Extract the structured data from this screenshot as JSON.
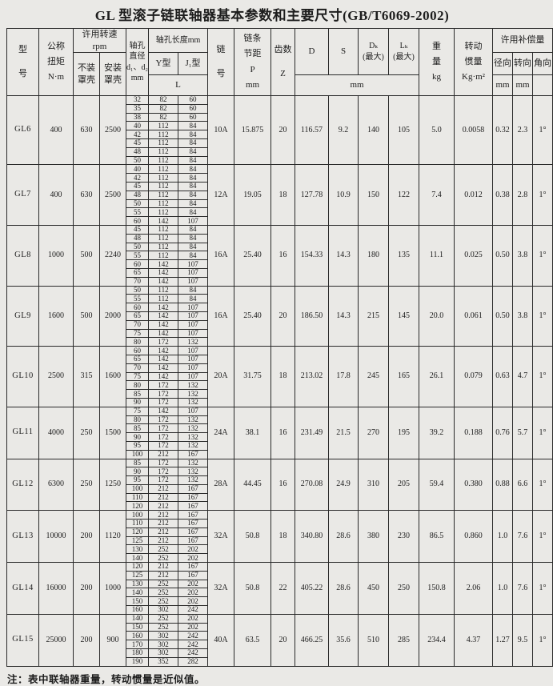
{
  "title": "GL 型滚子链联轴器基本参数和主要尺寸(GB/T6069-2002)",
  "note": "注：表中联轴器重量，转动惯量是近似值。",
  "header": {
    "model": "型\n号",
    "torque": "公称\n扭矩\nN·m",
    "speed": "许用转速\nrpm",
    "speed_open": "不装\n罩壳",
    "speed_cover": "安装\n罩壳",
    "bore_diameter": "轴孔\n直径\nd₁、d₂\nmm",
    "bore_length": "轴孔长度mm",
    "y_type": "Y型",
    "j_type": "J₁型",
    "length_l": "L",
    "chain": "链\n号",
    "pitch": "链条\n节距\nP\nmm",
    "teeth": "齿数\nZ",
    "d": "D",
    "s": "S",
    "dk": "Dₖ\n(最大)",
    "lk": "Lₖ\n(最大)",
    "dim_unit": "mm",
    "weight": "重\n量\nkg",
    "inertia": "转动\n惯量\nKg·m²",
    "compensation": "许用补偿量",
    "radial": "径向",
    "axial": "转向",
    "angular": "角向",
    "radial_unit": "mm",
    "axial_unit": "mm",
    "angular_unit": ""
  },
  "models": [
    {
      "name": "GL6",
      "torque": "400",
      "speed_open": "630",
      "speed_cover": "2500",
      "bores": [
        [
          "32",
          "82",
          "60"
        ],
        [
          "35",
          "82",
          "60"
        ],
        [
          "38",
          "82",
          "60"
        ],
        [
          "40",
          "112",
          "84"
        ],
        [
          "42",
          "112",
          "84"
        ],
        [
          "45",
          "112",
          "84"
        ],
        [
          "48",
          "112",
          "84"
        ],
        [
          "50",
          "112",
          "84"
        ]
      ],
      "chain_no": "10A",
      "pitch": "15.875",
      "teeth": "20",
      "D": "116.57",
      "S": "9.2",
      "Dk": "140",
      "Lk": "105",
      "weight": "5.0",
      "inertia": "0.0058",
      "radial": "0.32",
      "axial": "2.3",
      "angular": "1°"
    },
    {
      "name": "GL7",
      "torque": "400",
      "speed_open": "630",
      "speed_cover": "2500",
      "bores": [
        [
          "40",
          "112",
          "84"
        ],
        [
          "42",
          "112",
          "84"
        ],
        [
          "45",
          "112",
          "84"
        ],
        [
          "48",
          "112",
          "84"
        ],
        [
          "50",
          "112",
          "84"
        ],
        [
          "55",
          "112",
          "84"
        ],
        [
          "60",
          "142",
          "107"
        ]
      ],
      "chain_no": "12A",
      "pitch": "19.05",
      "teeth": "18",
      "D": "127.78",
      "S": "10.9",
      "Dk": "150",
      "Lk": "122",
      "weight": "7.4",
      "inertia": "0.012",
      "radial": "0.38",
      "axial": "2.8",
      "angular": "1°"
    },
    {
      "name": "GL8",
      "torque": "1000",
      "speed_open": "500",
      "speed_cover": "2240",
      "bores": [
        [
          "45",
          "112",
          "84"
        ],
        [
          "48",
          "112",
          "84"
        ],
        [
          "50",
          "112",
          "84"
        ],
        [
          "55",
          "112",
          "84"
        ],
        [
          "60",
          "142",
          "107"
        ],
        [
          "65",
          "142",
          "107"
        ],
        [
          "70",
          "142",
          "107"
        ]
      ],
      "chain_no": "16A",
      "pitch": "25.40",
      "teeth": "16",
      "D": "154.33",
      "S": "14.3",
      "Dk": "180",
      "Lk": "135",
      "weight": "11.1",
      "inertia": "0.025",
      "radial": "0.50",
      "axial": "3.8",
      "angular": "1°"
    },
    {
      "name": "GL9",
      "torque": "1600",
      "speed_open": "500",
      "speed_cover": "2000",
      "bores": [
        [
          "50",
          "112",
          "84"
        ],
        [
          "55",
          "112",
          "84"
        ],
        [
          "60",
          "142",
          "107"
        ],
        [
          "65",
          "142",
          "107"
        ],
        [
          "70",
          "142",
          "107"
        ],
        [
          "75",
          "142",
          "107"
        ],
        [
          "80",
          "172",
          "132"
        ]
      ],
      "chain_no": "16A",
      "pitch": "25.40",
      "teeth": "20",
      "D": "186.50",
      "S": "14.3",
      "Dk": "215",
      "Lk": "145",
      "weight": "20.0",
      "inertia": "0.061",
      "radial": "0.50",
      "axial": "3.8",
      "angular": "1°"
    },
    {
      "name": "GL10",
      "torque": "2500",
      "speed_open": "315",
      "speed_cover": "1600",
      "bores": [
        [
          "60",
          "142",
          "107"
        ],
        [
          "65",
          "142",
          "107"
        ],
        [
          "70",
          "142",
          "107"
        ],
        [
          "75",
          "142",
          "107"
        ],
        [
          "80",
          "172",
          "132"
        ],
        [
          "85",
          "172",
          "132"
        ],
        [
          "90",
          "172",
          "132"
        ]
      ],
      "chain_no": "20A",
      "pitch": "31.75",
      "teeth": "18",
      "D": "213.02",
      "S": "17.8",
      "Dk": "245",
      "Lk": "165",
      "weight": "26.1",
      "inertia": "0.079",
      "radial": "0.63",
      "axial": "4.7",
      "angular": "1°"
    },
    {
      "name": "GL11",
      "torque": "4000",
      "speed_open": "250",
      "speed_cover": "1500",
      "bores": [
        [
          "75",
          "142",
          "107"
        ],
        [
          "80",
          "172",
          "132"
        ],
        [
          "85",
          "172",
          "132"
        ],
        [
          "90",
          "172",
          "132"
        ],
        [
          "95",
          "172",
          "132"
        ],
        [
          "100",
          "212",
          "167"
        ]
      ],
      "chain_no": "24A",
      "pitch": "38.1",
      "teeth": "16",
      "D": "231.49",
      "S": "21.5",
      "Dk": "270",
      "Lk": "195",
      "weight": "39.2",
      "inertia": "0.188",
      "radial": "0.76",
      "axial": "5.7",
      "angular": "1°"
    },
    {
      "name": "GL12",
      "torque": "6300",
      "speed_open": "250",
      "speed_cover": "1250",
      "bores": [
        [
          "85",
          "172",
          "132"
        ],
        [
          "90",
          "172",
          "132"
        ],
        [
          "95",
          "172",
          "132"
        ],
        [
          "100",
          "212",
          "167"
        ],
        [
          "110",
          "212",
          "167"
        ],
        [
          "120",
          "212",
          "167"
        ]
      ],
      "chain_no": "28A",
      "pitch": "44.45",
      "teeth": "16",
      "D": "270.08",
      "S": "24.9",
      "Dk": "310",
      "Lk": "205",
      "weight": "59.4",
      "inertia": "0.380",
      "radial": "0.88",
      "axial": "6.6",
      "angular": "1°"
    },
    {
      "name": "GL13",
      "torque": "10000",
      "speed_open": "200",
      "speed_cover": "1120",
      "bores": [
        [
          "100",
          "212",
          "167"
        ],
        [
          "110",
          "212",
          "167"
        ],
        [
          "120",
          "212",
          "167"
        ],
        [
          "125",
          "212",
          "167"
        ],
        [
          "130",
          "252",
          "202"
        ],
        [
          "140",
          "252",
          "202"
        ]
      ],
      "chain_no": "32A",
      "pitch": "50.8",
      "teeth": "18",
      "D": "340.80",
      "S": "28.6",
      "Dk": "380",
      "Lk": "230",
      "weight": "86.5",
      "inertia": "0.860",
      "radial": "1.0",
      "axial": "7.6",
      "angular": "1°"
    },
    {
      "name": "GL14",
      "torque": "16000",
      "speed_open": "200",
      "speed_cover": "1000",
      "bores": [
        [
          "120",
          "212",
          "167"
        ],
        [
          "125",
          "212",
          "167"
        ],
        [
          "130",
          "252",
          "202"
        ],
        [
          "140",
          "252",
          "202"
        ],
        [
          "150",
          "252",
          "202"
        ],
        [
          "160",
          "302",
          "242"
        ]
      ],
      "chain_no": "32A",
      "pitch": "50.8",
      "teeth": "22",
      "D": "405.22",
      "S": "28.6",
      "Dk": "450",
      "Lk": "250",
      "weight": "150.8",
      "inertia": "2.06",
      "radial": "1.0",
      "axial": "7.6",
      "angular": "1°"
    },
    {
      "name": "GL15",
      "torque": "25000",
      "speed_open": "200",
      "speed_cover": "900",
      "bores": [
        [
          "140",
          "252",
          "202"
        ],
        [
          "150",
          "252",
          "202"
        ],
        [
          "160",
          "302",
          "242"
        ],
        [
          "170",
          "302",
          "242"
        ],
        [
          "180",
          "302",
          "242"
        ],
        [
          "190",
          "352",
          "282"
        ]
      ],
      "chain_no": "40A",
      "pitch": "63.5",
      "teeth": "20",
      "D": "466.25",
      "S": "35.6",
      "Dk": "510",
      "Lk": "285",
      "weight": "234.4",
      "inertia": "4.37",
      "radial": "1.27",
      "axial": "9.5",
      "angular": "1°"
    }
  ]
}
